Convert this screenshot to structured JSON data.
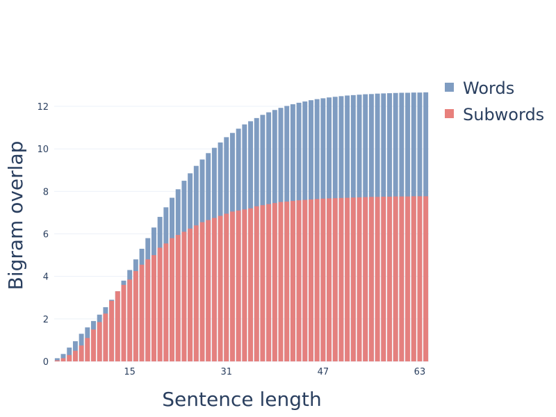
{
  "chart_data": {
    "type": "bar",
    "barmode": "overlay",
    "xlabel": "Sentence length",
    "ylabel": "Bigram overlap",
    "x_tick_labels": [
      "15",
      "31",
      "47",
      "63"
    ],
    "y_tick_labels": [
      "0",
      "2",
      "4",
      "6",
      "8",
      "10",
      "12"
    ],
    "xlim": [
      2.5,
      64.5
    ],
    "ylim": [
      0,
      13.8
    ],
    "grid": true,
    "legend_position": "top-right",
    "x": [
      3,
      4,
      5,
      6,
      7,
      8,
      9,
      10,
      11,
      12,
      13,
      14,
      15,
      16,
      17,
      18,
      19,
      20,
      21,
      22,
      23,
      24,
      25,
      26,
      27,
      28,
      29,
      30,
      31,
      32,
      33,
      34,
      35,
      36,
      37,
      38,
      39,
      40,
      41,
      42,
      43,
      44,
      45,
      46,
      47,
      48,
      49,
      50,
      51,
      52,
      53,
      54,
      55,
      56,
      57,
      58,
      59,
      60,
      61,
      62,
      63,
      64
    ],
    "series": [
      {
        "name": "Words",
        "color": "#7f9cc1",
        "values": [
          0.15,
          0.35,
          0.65,
          0.95,
          1.3,
          1.6,
          1.9,
          2.2,
          2.55,
          2.9,
          3.3,
          3.8,
          4.3,
          4.8,
          5.3,
          5.8,
          6.3,
          6.8,
          7.25,
          7.7,
          8.1,
          8.5,
          8.85,
          9.2,
          9.5,
          9.8,
          10.05,
          10.3,
          10.55,
          10.75,
          10.95,
          11.15,
          11.3,
          11.45,
          11.6,
          11.72,
          11.83,
          11.93,
          12.02,
          12.1,
          12.17,
          12.23,
          12.29,
          12.34,
          12.38,
          12.42,
          12.45,
          12.48,
          12.51,
          12.53,
          12.55,
          12.57,
          12.58,
          12.6,
          12.61,
          12.62,
          12.63,
          12.64,
          12.64,
          12.65,
          12.65,
          12.66
        ]
      },
      {
        "name": "Subwords",
        "color": "#e8807c",
        "values": [
          0.05,
          0.15,
          0.3,
          0.5,
          0.75,
          1.1,
          1.5,
          1.85,
          2.25,
          2.85,
          3.3,
          3.6,
          3.85,
          4.25,
          4.55,
          4.8,
          5.0,
          5.35,
          5.55,
          5.8,
          5.95,
          6.1,
          6.25,
          6.4,
          6.55,
          6.65,
          6.75,
          6.85,
          6.95,
          7.05,
          7.1,
          7.15,
          7.2,
          7.3,
          7.35,
          7.4,
          7.45,
          7.5,
          7.52,
          7.55,
          7.58,
          7.6,
          7.62,
          7.64,
          7.66,
          7.67,
          7.68,
          7.69,
          7.7,
          7.71,
          7.72,
          7.73,
          7.74,
          7.74,
          7.75,
          7.75,
          7.76,
          7.76,
          7.76,
          7.77,
          7.77,
          7.77
        ]
      }
    ]
  }
}
